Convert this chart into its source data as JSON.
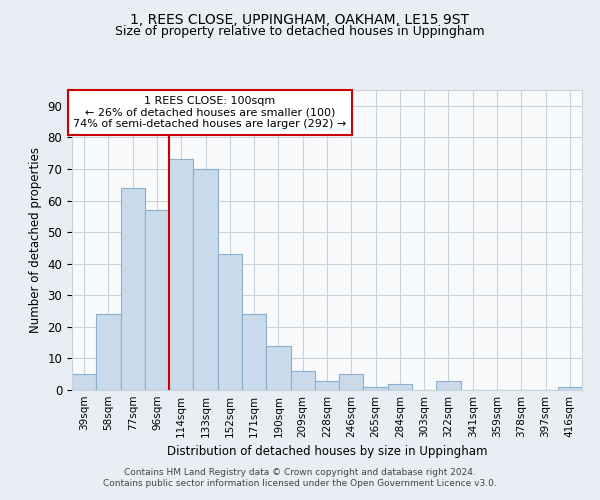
{
  "title1": "1, REES CLOSE, UPPINGHAM, OAKHAM, LE15 9ST",
  "title2": "Size of property relative to detached houses in Uppingham",
  "xlabel": "Distribution of detached houses by size in Uppingham",
  "ylabel": "Number of detached properties",
  "categories": [
    "39sqm",
    "58sqm",
    "77sqm",
    "96sqm",
    "114sqm",
    "133sqm",
    "152sqm",
    "171sqm",
    "190sqm",
    "209sqm",
    "228sqm",
    "246sqm",
    "265sqm",
    "284sqm",
    "303sqm",
    "322sqm",
    "341sqm",
    "359sqm",
    "378sqm",
    "397sqm",
    "416sqm"
  ],
  "values": [
    5,
    24,
    64,
    57,
    73,
    70,
    43,
    24,
    14,
    6,
    3,
    5,
    1,
    2,
    0,
    3,
    0,
    0,
    0,
    0,
    1
  ],
  "bar_color": "#c9daea",
  "bar_edge_color": "#8ab0cc",
  "vline_x": 3.5,
  "vline_color": "#cc0000",
  "annotation_line1": "1 REES CLOSE: 100sqm",
  "annotation_line2": "← 26% of detached houses are smaller (100)",
  "annotation_line3": "74% of semi-detached houses are larger (292) →",
  "annotation_box_color": "#ffffff",
  "annotation_box_edge": "#cc0000",
  "footer1": "Contains HM Land Registry data © Crown copyright and database right 2024.",
  "footer2": "Contains public sector information licensed under the Open Government Licence v3.0.",
  "ylim": [
    0,
    95
  ],
  "bg_color": "#e8eef4",
  "plot_bg_color": "#f8fafc",
  "grid_color": "#c8d4dc"
}
